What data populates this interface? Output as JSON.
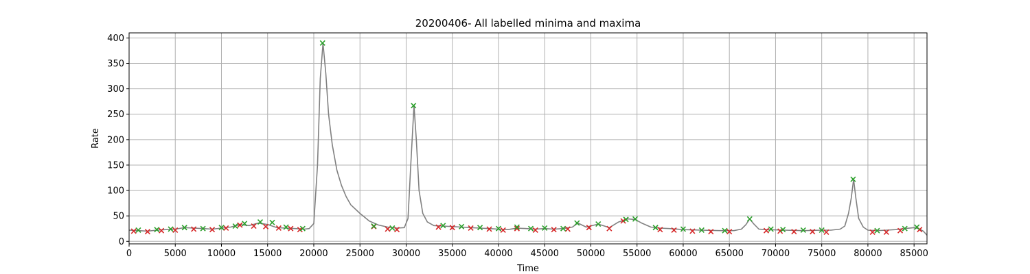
{
  "chart_data": {
    "type": "line",
    "title": "20200406- All labelled minima and maxima",
    "xlabel": "Time",
    "ylabel": "Rate",
    "xlim": [
      0,
      86400
    ],
    "ylim": [
      -5,
      410
    ],
    "x_ticks": [
      0,
      5000,
      10000,
      15000,
      20000,
      25000,
      30000,
      35000,
      40000,
      45000,
      50000,
      55000,
      60000,
      65000,
      70000,
      75000,
      80000,
      85000
    ],
    "y_ticks": [
      0,
      50,
      100,
      150,
      200,
      250,
      300,
      350,
      400
    ],
    "grid": true,
    "colors": {
      "line": "#808080",
      "minima": "#d62728",
      "maxima": "#2ca02c",
      "grid": "#b0b0b0"
    },
    "series": [
      {
        "type": "line",
        "x": [
          0,
          1000,
          2000,
          3000,
          4000,
          5000,
          6000,
          7000,
          8000,
          9000,
          10000,
          11000,
          12000,
          13000,
          14000,
          15000,
          16000,
          17000,
          18000,
          19000,
          19500,
          20000,
          20400,
          20700,
          21000,
          21300,
          21600,
          22000,
          22500,
          23000,
          23500,
          24000,
          25000,
          26000,
          27000,
          28000,
          29000,
          29800,
          30200,
          30500,
          30850,
          31100,
          31400,
          31800,
          32300,
          33000,
          34000,
          35000,
          36000,
          37000,
          38000,
          39000,
          40000,
          41000,
          42000,
          43000,
          44000,
          45000,
          46000,
          47000,
          48000,
          48600,
          49500,
          50800,
          52000,
          53000,
          54000,
          54800,
          55500,
          56500,
          57500,
          58500,
          60000,
          62000,
          64000,
          65500,
          66300,
          66800,
          67200,
          67600,
          68200,
          69000,
          71000,
          73000,
          75000,
          76000,
          77000,
          77500,
          77900,
          78200,
          78450,
          78700,
          79000,
          79500,
          80000,
          81000,
          82000,
          83000,
          84000,
          85000,
          85500,
          86000,
          86400
        ],
        "y": [
          22,
          21,
          20,
          22,
          23,
          24,
          27,
          26,
          25,
          24,
          26,
          28,
          33,
          31,
          36,
          33,
          27,
          26,
          25,
          24,
          25,
          35,
          150,
          320,
          390,
          330,
          250,
          190,
          140,
          110,
          88,
          72,
          55,
          40,
          32,
          28,
          26,
          27,
          45,
          150,
          267,
          200,
          100,
          55,
          38,
          31,
          30,
          29,
          28,
          27,
          26,
          25,
          24,
          23,
          26,
          25,
          24,
          25,
          24,
          25,
          28,
          36,
          28,
          34,
          27,
          38,
          44,
          43,
          36,
          28,
          26,
          25,
          23,
          22,
          21,
          21,
          24,
          33,
          44,
          35,
          24,
          23,
          22,
          21,
          22,
          22,
          24,
          30,
          55,
          85,
          122,
          85,
          45,
          28,
          22,
          21,
          22,
          23,
          25,
          27,
          25,
          20,
          12
        ]
      },
      {
        "type": "scatter",
        "marker": "x",
        "color": "#d62728",
        "x": [
          500,
          2000,
          3500,
          5000,
          7000,
          9000,
          10500,
          12000,
          13500,
          14800,
          16200,
          17500,
          18500,
          26500,
          28000,
          29000,
          33500,
          35000,
          37000,
          39000,
          40500,
          42000,
          44000,
          46000,
          47500,
          49800,
          52000,
          53500,
          57500,
          59000,
          61000,
          63000,
          65000,
          69000,
          70500,
          72000,
          74000,
          75500,
          80500,
          82000,
          83500,
          85600
        ],
        "y": [
          20,
          19,
          21,
          22,
          24,
          23,
          26,
          32,
          30,
          29,
          26,
          25,
          23,
          29,
          24,
          23,
          28,
          27,
          26,
          24,
          22,
          25,
          22,
          23,
          24,
          27,
          25,
          40,
          23,
          22,
          20,
          19,
          19,
          21,
          20,
          19,
          19,
          18,
          18,
          18,
          21,
          23
        ]
      },
      {
        "type": "scatter",
        "marker": "x",
        "color": "#2ca02c",
        "x": [
          1000,
          3000,
          4500,
          6000,
          8000,
          10000,
          11500,
          12500,
          14200,
          15500,
          17000,
          18800,
          20950,
          26500,
          28500,
          30800,
          34000,
          36000,
          38000,
          40000,
          42000,
          43500,
          45000,
          47000,
          48500,
          50800,
          53800,
          54800,
          57000,
          60000,
          62000,
          64500,
          67200,
          69500,
          70800,
          73000,
          75000,
          78400,
          81000,
          84000,
          85300
        ],
        "y": [
          22,
          23,
          24,
          27,
          25,
          27,
          30,
          35,
          38,
          37,
          28,
          25,
          390,
          30,
          26,
          267,
          31,
          29,
          27,
          25,
          28,
          25,
          26,
          25,
          36,
          34,
          43,
          44,
          27,
          24,
          22,
          21,
          44,
          24,
          23,
          22,
          22,
          122,
          21,
          25,
          28
        ]
      }
    ]
  }
}
